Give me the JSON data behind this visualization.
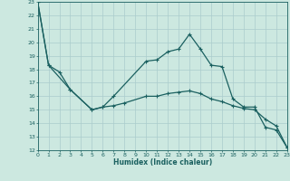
{
  "xlabel": "Humidex (Indice chaleur)",
  "background_color": "#cce8e0",
  "grid_color": "#aacccc",
  "line_color": "#1a6060",
  "xlim": [
    0,
    23
  ],
  "ylim": [
    12,
    23
  ],
  "yticks": [
    12,
    13,
    14,
    15,
    16,
    17,
    18,
    19,
    20,
    21,
    22,
    23
  ],
  "xticks": [
    0,
    1,
    2,
    3,
    4,
    5,
    6,
    7,
    8,
    9,
    10,
    11,
    12,
    13,
    14,
    15,
    16,
    17,
    18,
    19,
    20,
    21,
    22,
    23
  ],
  "series1_x": [
    0,
    1,
    3,
    5,
    6,
    7,
    10,
    11,
    12,
    13,
    14,
    15,
    16,
    17,
    18,
    19,
    20,
    21,
    22,
    23
  ],
  "series1_y": [
    23,
    18.3,
    16.5,
    15.0,
    15.2,
    16.0,
    18.6,
    18.7,
    19.3,
    19.5,
    20.6,
    19.5,
    18.3,
    18.2,
    15.8,
    15.2,
    15.2,
    13.7,
    13.5,
    12.2
  ],
  "series2_x": [
    0,
    1,
    2,
    3,
    5,
    6,
    7,
    8,
    10,
    11,
    12,
    13,
    14,
    15,
    16,
    17,
    18,
    19,
    20,
    21,
    22,
    23
  ],
  "series2_y": [
    23,
    18.3,
    17.8,
    16.5,
    15.0,
    15.2,
    15.3,
    15.5,
    16.0,
    16.0,
    16.2,
    16.3,
    16.4,
    16.2,
    15.8,
    15.6,
    15.3,
    15.1,
    15.0,
    14.3,
    13.8,
    12.2
  ]
}
